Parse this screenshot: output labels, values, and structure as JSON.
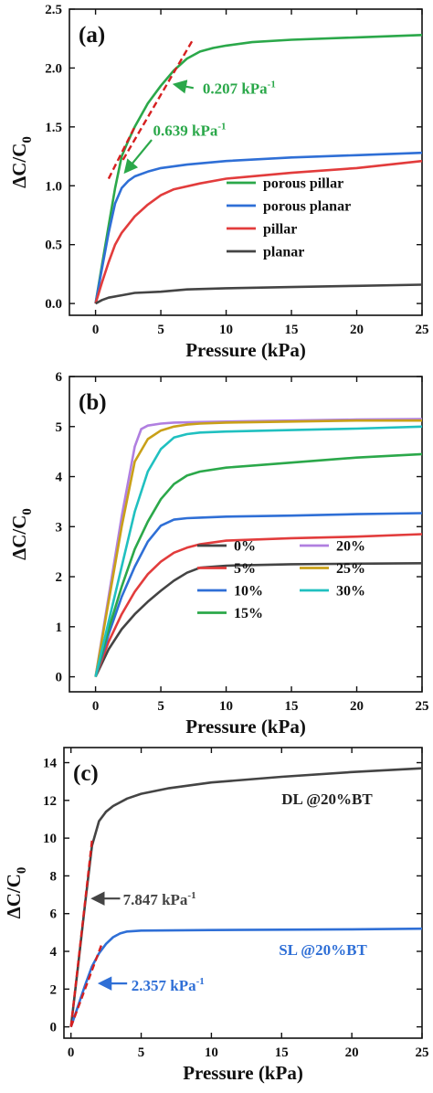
{
  "chart_data": [
    {
      "type": "line",
      "panel_label": "(a)",
      "xlabel": "Pressure (kPa)",
      "ylabel_main": "ΔC/C",
      "ylabel_sub": "0",
      "xlim": [
        -2,
        25
      ],
      "ylim": [
        -0.1,
        2.5
      ],
      "xticks": [
        0,
        5,
        10,
        15,
        20,
        25
      ],
      "yticks": [
        0.0,
        0.5,
        1.0,
        1.5,
        2.0,
        2.5
      ],
      "ytick_labels": [
        "0.0",
        "0.5",
        "1.0",
        "1.5",
        "2.0",
        "2.5"
      ],
      "legend_position": "lower-right",
      "legend_columns": 1,
      "series": [
        {
          "name": "porous pillar",
          "color": "#2ba84a",
          "x": [
            0,
            0.5,
            1,
            1.5,
            2,
            2.5,
            3,
            4,
            5,
            6,
            7,
            8,
            9,
            10,
            12,
            15,
            20,
            25
          ],
          "y": [
            0,
            0.33,
            0.66,
            0.98,
            1.25,
            1.38,
            1.5,
            1.7,
            1.85,
            1.98,
            2.08,
            2.14,
            2.17,
            2.19,
            2.22,
            2.24,
            2.26,
            2.28
          ]
        },
        {
          "name": "porous planar",
          "color": "#2f6fd6",
          "x": [
            0,
            0.5,
            1,
            1.5,
            2,
            2.5,
            3,
            4,
            5,
            7,
            10,
            15,
            20,
            25
          ],
          "y": [
            0,
            0.3,
            0.6,
            0.85,
            0.98,
            1.04,
            1.08,
            1.12,
            1.15,
            1.18,
            1.21,
            1.24,
            1.26,
            1.28
          ]
        },
        {
          "name": "pillar",
          "color": "#e23c3c",
          "x": [
            0,
            0.5,
            1,
            1.5,
            2,
            3,
            4,
            5,
            6,
            8,
            10,
            15,
            20,
            25
          ],
          "y": [
            0,
            0.18,
            0.35,
            0.5,
            0.6,
            0.74,
            0.84,
            0.92,
            0.97,
            1.02,
            1.06,
            1.11,
            1.15,
            1.21
          ]
        },
        {
          "name": "planar",
          "color": "#444444",
          "x": [
            0,
            0.5,
            1,
            2,
            3,
            5,
            7,
            10,
            15,
            20,
            25
          ],
          "y": [
            0,
            0.03,
            0.05,
            0.07,
            0.09,
            0.1,
            0.12,
            0.13,
            0.14,
            0.15,
            0.16
          ]
        }
      ],
      "fit_lines": [
        {
          "x": [
            1,
            3
          ],
          "y": [
            1.06,
            1.5
          ]
        },
        {
          "x": [
            2.1,
            7.4
          ],
          "y": [
            1.22,
            2.23
          ]
        }
      ],
      "annotations": [
        {
          "text": "0.207 kPa",
          "sup": "-1",
          "color": "#2ba84a",
          "x": 8.2,
          "y": 1.83,
          "arrow_from": [
            7.5,
            1.83
          ],
          "arrow_to": [
            6.1,
            1.86
          ]
        },
        {
          "text": "0.639 kPa",
          "sup": "-1",
          "color": "#2ba84a",
          "x": 4.4,
          "y": 1.47,
          "arrow_from": [
            4.3,
            1.39
          ],
          "arrow_to": [
            2.3,
            1.12
          ]
        }
      ]
    },
    {
      "type": "line",
      "panel_label": "(b)",
      "xlabel": "Pressure (kPa)",
      "ylabel_main": "ΔC/C",
      "ylabel_sub": "0",
      "xlim": [
        -2,
        25
      ],
      "ylim": [
        -0.3,
        6
      ],
      "xticks": [
        0,
        5,
        10,
        15,
        20,
        25
      ],
      "yticks": [
        0,
        1,
        2,
        3,
        4,
        5,
        6
      ],
      "ytick_labels": [
        "0",
        "1",
        "2",
        "3",
        "4",
        "5",
        "6"
      ],
      "legend_position": "lower-right",
      "legend_columns": 2,
      "series": [
        {
          "name": "0%",
          "color": "#444444",
          "x": [
            0,
            1,
            2,
            3,
            4,
            5,
            6,
            7,
            8,
            10,
            15,
            20,
            25
          ],
          "y": [
            0,
            0.55,
            0.95,
            1.25,
            1.5,
            1.72,
            1.92,
            2.08,
            2.18,
            2.22,
            2.25,
            2.26,
            2.27
          ]
        },
        {
          "name": "5%",
          "color": "#e23c3c",
          "x": [
            0,
            1,
            2,
            3,
            4,
            5,
            6,
            7,
            8,
            10,
            15,
            20,
            25
          ],
          "y": [
            0,
            0.7,
            1.25,
            1.7,
            2.05,
            2.3,
            2.48,
            2.58,
            2.65,
            2.72,
            2.77,
            2.8,
            2.85
          ]
        },
        {
          "name": "10%",
          "color": "#2f6fd6",
          "x": [
            0,
            1,
            2,
            3,
            4,
            5,
            6,
            7,
            8,
            10,
            15,
            20,
            25
          ],
          "y": [
            0,
            0.85,
            1.6,
            2.2,
            2.7,
            3.02,
            3.14,
            3.17,
            3.18,
            3.2,
            3.22,
            3.25,
            3.27
          ]
        },
        {
          "name": "15%",
          "color": "#2ba84a",
          "x": [
            0,
            1,
            2,
            3,
            4,
            5,
            6,
            7,
            8,
            10,
            15,
            20,
            25
          ],
          "y": [
            0,
            0.95,
            1.8,
            2.55,
            3.1,
            3.55,
            3.85,
            4.02,
            4.1,
            4.18,
            4.28,
            4.38,
            4.45
          ]
        },
        {
          "name": "20%",
          "color": "#b07fe0",
          "x": [
            0,
            1,
            2,
            3,
            3.5,
            4,
            5,
            6,
            8,
            10,
            15,
            20,
            25
          ],
          "y": [
            0,
            1.6,
            3.2,
            4.6,
            4.95,
            5.02,
            5.06,
            5.08,
            5.09,
            5.1,
            5.12,
            5.14,
            5.15
          ]
        },
        {
          "name": "25%",
          "color": "#c9a018",
          "x": [
            0,
            1,
            2,
            3,
            4,
            5,
            6,
            7,
            8,
            10,
            15,
            20,
            25
          ],
          "y": [
            0,
            1.5,
            3.0,
            4.3,
            4.75,
            4.92,
            5.0,
            5.04,
            5.06,
            5.08,
            5.1,
            5.12,
            5.12
          ]
        },
        {
          "name": "30%",
          "color": "#20c0c0",
          "x": [
            0,
            1,
            2,
            3,
            4,
            5,
            6,
            7,
            8,
            10,
            15,
            20,
            25
          ],
          "y": [
            0,
            1.1,
            2.2,
            3.3,
            4.1,
            4.55,
            4.78,
            4.85,
            4.88,
            4.9,
            4.93,
            4.96,
            5.0
          ]
        }
      ],
      "fit_lines": [],
      "annotations": []
    },
    {
      "type": "line",
      "panel_label": "(c)",
      "xlabel": "Pressure (kPa)",
      "ylabel_main": "ΔC/C",
      "ylabel_sub": "0",
      "xlim": [
        -0.5,
        25
      ],
      "ylim": [
        -0.6,
        14.8
      ],
      "xticks": [
        0,
        5,
        10,
        15,
        20,
        25
      ],
      "yticks": [
        0,
        2,
        4,
        6,
        8,
        10,
        12,
        14
      ],
      "ytick_labels": [
        "0",
        "2",
        "4",
        "6",
        "8",
        "10",
        "12",
        "14"
      ],
      "legend_position": "none",
      "legend_columns": 0,
      "series": [
        {
          "name": "DL @20%BT",
          "color": "#444444",
          "x": [
            0,
            0.5,
            1,
            1.5,
            2,
            2.5,
            3,
            4,
            5,
            7,
            10,
            15,
            20,
            25
          ],
          "y": [
            0,
            3.2,
            6.5,
            9.6,
            10.9,
            11.4,
            11.7,
            12.1,
            12.35,
            12.65,
            12.95,
            13.25,
            13.5,
            13.7
          ]
        },
        {
          "name": "SL @20%BT",
          "color": "#2f6fd6",
          "x": [
            0,
            0.5,
            1,
            1.5,
            2,
            2.5,
            3,
            3.5,
            4,
            5,
            10,
            15,
            20,
            25
          ],
          "y": [
            0,
            1.1,
            2.2,
            3.2,
            3.9,
            4.4,
            4.75,
            4.95,
            5.05,
            5.1,
            5.13,
            5.15,
            5.17,
            5.2
          ]
        }
      ],
      "fit_lines": [
        {
          "x": [
            0,
            1.5
          ],
          "y": [
            0,
            9.9
          ]
        },
        {
          "x": [
            0,
            2.2
          ],
          "y": [
            0,
            4.4
          ]
        }
      ],
      "annotations": [
        {
          "text": "7.847 kPa",
          "sup": "-1",
          "color": "#444444",
          "x": 3.7,
          "y": 6.75,
          "arrow_from": [
            3.5,
            6.8
          ],
          "arrow_to": [
            1.6,
            6.8
          ]
        },
        {
          "text": "2.357 kPa",
          "sup": "-1",
          "color": "#2f6fd6",
          "x": 4.3,
          "y": 2.2,
          "arrow_from": [
            4.0,
            2.3
          ],
          "arrow_to": [
            2.1,
            2.3
          ]
        },
        {
          "text": "DL @20%BT",
          "sup": "",
          "color": "#222222",
          "x": 15.0,
          "y": 12.1,
          "arrow_from": null,
          "arrow_to": null
        },
        {
          "text": "SL @20%BT",
          "sup": "",
          "color": "#2f6fd6",
          "x": 14.8,
          "y": 4.1,
          "arrow_from": null,
          "arrow_to": null
        }
      ]
    }
  ]
}
